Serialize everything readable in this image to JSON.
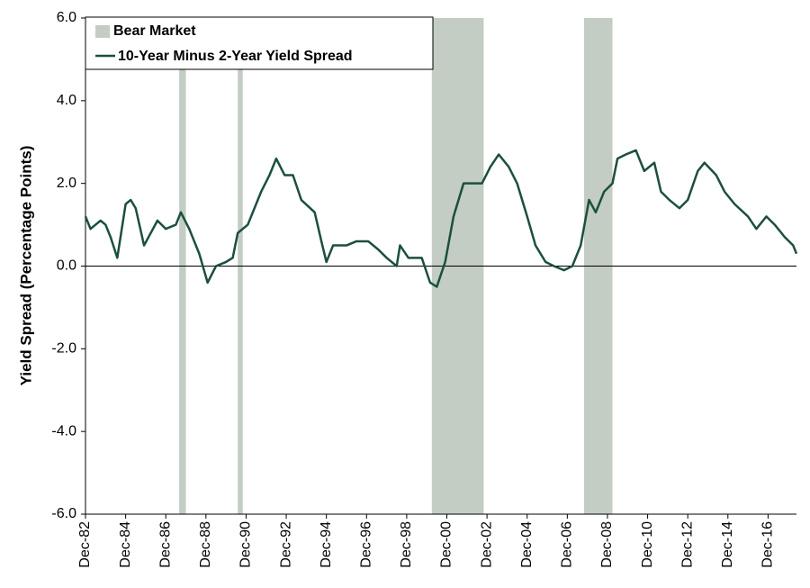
{
  "chart_data": {
    "type": "line",
    "y_label": "Yield Spread (Percentage Points)",
    "x": [
      "1982-12",
      "1983-03",
      "1983-06",
      "1983-09",
      "1983-12",
      "1984-03",
      "1984-07",
      "1984-12",
      "1985-03",
      "1985-06",
      "1985-11",
      "1986-07",
      "1986-12",
      "1987-06",
      "1987-09",
      "1988-02",
      "1988-08",
      "1989-01",
      "1989-06",
      "1989-12",
      "1990-04",
      "1990-07",
      "1991-01",
      "1991-09",
      "1992-02",
      "1992-06",
      "1992-11",
      "1993-04",
      "1993-09",
      "1994-05",
      "1994-09",
      "1994-12",
      "1995-04",
      "1995-12",
      "1996-06",
      "1997-01",
      "1997-07",
      "1997-12",
      "1998-06",
      "1998-08",
      "1999-01",
      "1999-09",
      "2000-02",
      "2000-06",
      "2000-11",
      "2001-04",
      "2001-10",
      "2002-03",
      "2002-09",
      "2003-02",
      "2003-07",
      "2004-01",
      "2004-06",
      "2004-12",
      "2005-05",
      "2005-11",
      "2006-04",
      "2006-10",
      "2007-03",
      "2007-08",
      "2008-01",
      "2008-05",
      "2008-10",
      "2009-03",
      "2009-06",
      "2009-11",
      "2010-05",
      "2010-10",
      "2011-04",
      "2011-08",
      "2012-01",
      "2012-07",
      "2012-12",
      "2013-06",
      "2013-10",
      "2014-05",
      "2014-10",
      "2015-04",
      "2015-12",
      "2016-05",
      "2016-11",
      "2017-04",
      "2017-10",
      "2018-03",
      "2018-05"
    ],
    "series": [
      {
        "name": "10-Year Minus 2-Year Yield Spread",
        "color": "#1c4f3e",
        "values": [
          1.2,
          0.9,
          1.0,
          1.1,
          1.0,
          0.7,
          0.2,
          1.5,
          1.6,
          1.4,
          0.5,
          1.1,
          0.9,
          1.0,
          1.3,
          0.9,
          0.3,
          -0.4,
          0.0,
          0.1,
          0.2,
          0.8,
          1.0,
          1.8,
          2.2,
          2.6,
          2.2,
          2.2,
          1.6,
          1.3,
          0.6,
          0.1,
          0.5,
          0.5,
          0.6,
          0.6,
          0.4,
          0.2,
          0.0,
          0.5,
          0.2,
          0.2,
          -0.4,
          -0.5,
          0.1,
          1.2,
          2.0,
          2.0,
          2.0,
          2.4,
          2.7,
          2.4,
          2.0,
          1.2,
          0.5,
          0.1,
          0.0,
          -0.1,
          0.0,
          0.5,
          1.6,
          1.3,
          1.8,
          2.0,
          2.6,
          2.7,
          2.8,
          2.3,
          2.5,
          1.8,
          1.6,
          1.4,
          1.6,
          2.3,
          2.5,
          2.2,
          1.8,
          1.5,
          1.2,
          0.9,
          1.2,
          1.0,
          0.7,
          0.5,
          0.3
        ]
      }
    ],
    "bands": {
      "name": "Bear Market",
      "color": "#c3cdc4",
      "periods": [
        {
          "start": "1987-08",
          "end": "1987-12"
        },
        {
          "start": "1990-07",
          "end": "1990-10"
        },
        {
          "start": "2000-03",
          "end": "2002-10"
        },
        {
          "start": "2007-10",
          "end": "2009-03"
        }
      ]
    },
    "xlim": [
      "1982-12",
      "2018-05"
    ],
    "xticks": [
      {
        "value": "1982-12",
        "label": "Dec-82"
      },
      {
        "value": "1984-12",
        "label": "Dec-84"
      },
      {
        "value": "1986-12",
        "label": "Dec-86"
      },
      {
        "value": "1988-12",
        "label": "Dec-88"
      },
      {
        "value": "1990-12",
        "label": "Dec-90"
      },
      {
        "value": "1992-12",
        "label": "Dec-92"
      },
      {
        "value": "1994-12",
        "label": "Dec-94"
      },
      {
        "value": "1996-12",
        "label": "Dec-96"
      },
      {
        "value": "1998-12",
        "label": "Dec-98"
      },
      {
        "value": "2000-12",
        "label": "Dec-00"
      },
      {
        "value": "2002-12",
        "label": "Dec-02"
      },
      {
        "value": "2004-12",
        "label": "Dec-04"
      },
      {
        "value": "2006-12",
        "label": "Dec-06"
      },
      {
        "value": "2008-12",
        "label": "Dec-08"
      },
      {
        "value": "2010-12",
        "label": "Dec-10"
      },
      {
        "value": "2012-12",
        "label": "Dec-12"
      },
      {
        "value": "2014-12",
        "label": "Dec-14"
      },
      {
        "value": "2016-12",
        "label": "Dec-16"
      }
    ],
    "ylim": [
      -6,
      6
    ],
    "yticks": [
      {
        "value": -6,
        "label": "-6.0"
      },
      {
        "value": -4,
        "label": "-4.0"
      },
      {
        "value": -2,
        "label": "-2.0"
      },
      {
        "value": 0,
        "label": "0.0"
      },
      {
        "value": 2,
        "label": "2.0"
      },
      {
        "value": 4,
        "label": "4.0"
      },
      {
        "value": 6,
        "label": "6.0"
      }
    ],
    "grid": false
  }
}
